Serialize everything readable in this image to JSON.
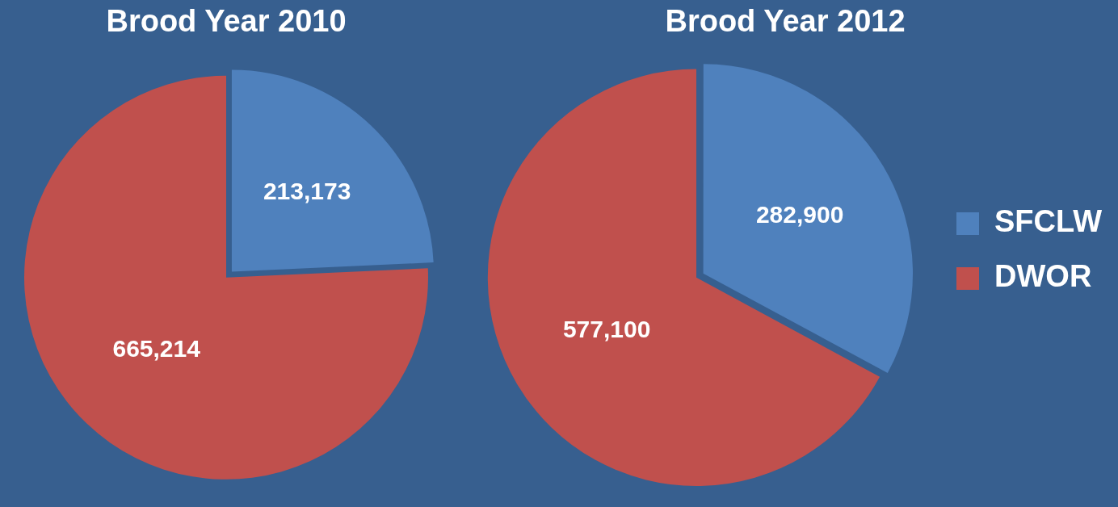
{
  "chart_data": [
    {
      "type": "pie",
      "title": "Brood Year 2010",
      "categories": [
        null,
        null
      ],
      "values": [
        213173,
        665214
      ],
      "value_labels": [
        "213,173",
        "665,214"
      ],
      "colors": [
        "#4f81bd",
        "#c0504d"
      ]
    },
    {
      "type": "pie",
      "title": "Brood Year 2012",
      "categories": [
        "SFCLW",
        "DWOR"
      ],
      "values": [
        282900,
        577100
      ],
      "value_labels": [
        "282,900",
        "577,100"
      ],
      "colors": [
        "#4f81bd",
        "#c0504d"
      ],
      "legend": "right"
    }
  ]
}
